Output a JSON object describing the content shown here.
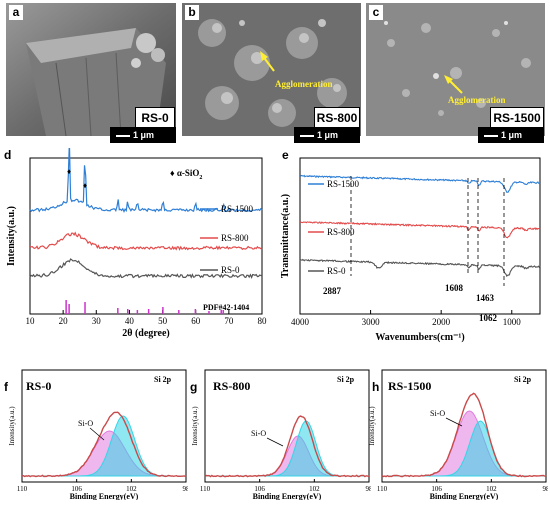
{
  "panels": {
    "a": {
      "letter": "a",
      "sample": "RS-0",
      "scale": "1 μm"
    },
    "b": {
      "letter": "b",
      "sample": "RS-800",
      "scale": "1 μm",
      "annotation": "Agglomeration"
    },
    "c": {
      "letter": "c",
      "sample": "RS-1500",
      "scale": "1 μm",
      "annotation": "Agglomeration"
    }
  },
  "chart_data": [
    {
      "panel": "d",
      "type": "line",
      "xlabel": "2θ (degree)",
      "ylabel": "Intensity(a.u.)",
      "xlim": [
        10,
        80
      ],
      "xticks": [
        10,
        20,
        30,
        40,
        50,
        60,
        70,
        80
      ],
      "legend": [
        "RS-1500",
        "RS-800",
        "RS-0"
      ],
      "marker_label": "♦ α-SiO",
      "marker_sub": "2",
      "reference_label": "PDF#42-1404",
      "reference_peaks": [
        20.9,
        21.8,
        26.6,
        36.5,
        39.5,
        42.4,
        45.8,
        50.1,
        54.9,
        59.9,
        64.0,
        67.7,
        68.3
      ],
      "series": [
        {
          "name": "RS-1500",
          "color": "#2e7fd6",
          "peaks": [
            [
              21.8,
              70
            ],
            [
              26.6,
              55
            ],
            [
              36.5,
              12
            ],
            [
              39.5,
              9
            ],
            [
              42.4,
              8
            ],
            [
              50.1,
              10
            ],
            [
              59.9,
              8
            ],
            [
              68.3,
              6
            ]
          ]
        },
        {
          "name": "RS-800",
          "color": "#e34b4b",
          "peaks": []
        },
        {
          "name": "RS-0",
          "color": "#555555",
          "peaks": []
        }
      ]
    },
    {
      "panel": "e",
      "type": "line",
      "xlabel": "Wavenumbers(cm⁻¹)",
      "ylabel": "Transmittance(a.u.)",
      "xlim": [
        4000,
        600
      ],
      "xticks": [
        4000,
        3000,
        2000,
        1000
      ],
      "legend": [
        "RS-1500",
        "RS-800",
        "RS-0"
      ],
      "annotations": [
        "2887",
        "1608",
        "1463",
        "1062"
      ],
      "series": [
        {
          "name": "RS-1500",
          "color": "#2e7fd6"
        },
        {
          "name": "RS-800",
          "color": "#e34b4b"
        },
        {
          "name": "RS-0",
          "color": "#555555"
        }
      ]
    },
    {
      "panel": "f",
      "type": "area",
      "sample": "RS-0",
      "element": "Si 2p",
      "peak_label": "Si-O",
      "xlabel": "Binding Energy(eV)",
      "ylabel": "Intensity(a.u.)",
      "xticks": [
        110,
        106,
        102,
        98
      ],
      "xlim": [
        110,
        98
      ]
    },
    {
      "panel": "g",
      "type": "area",
      "sample": "RS-800",
      "element": "Si 2p",
      "peak_label": "Si-O",
      "xlabel": "Binding Energy(eV)",
      "ylabel": "Intensity(a.u.)",
      "xticks": [
        110,
        106,
        102,
        98
      ],
      "xlim": [
        110,
        98
      ]
    },
    {
      "panel": "h",
      "type": "area",
      "sample": "RS-1500",
      "element": "Si 2p",
      "peak_label": "Si-O",
      "xlabel": "Binding Energy(eV)",
      "ylabel": "Intensity(a.u.)",
      "xticks": [
        110,
        106,
        102,
        98
      ],
      "xlim": [
        110,
        98
      ]
    }
  ],
  "colors": {
    "xrd_ref": "#cc33cc",
    "fit_red": "#c94a4a",
    "fit_cyan": "#33d6e6",
    "fit_pink": "#e07be0"
  }
}
